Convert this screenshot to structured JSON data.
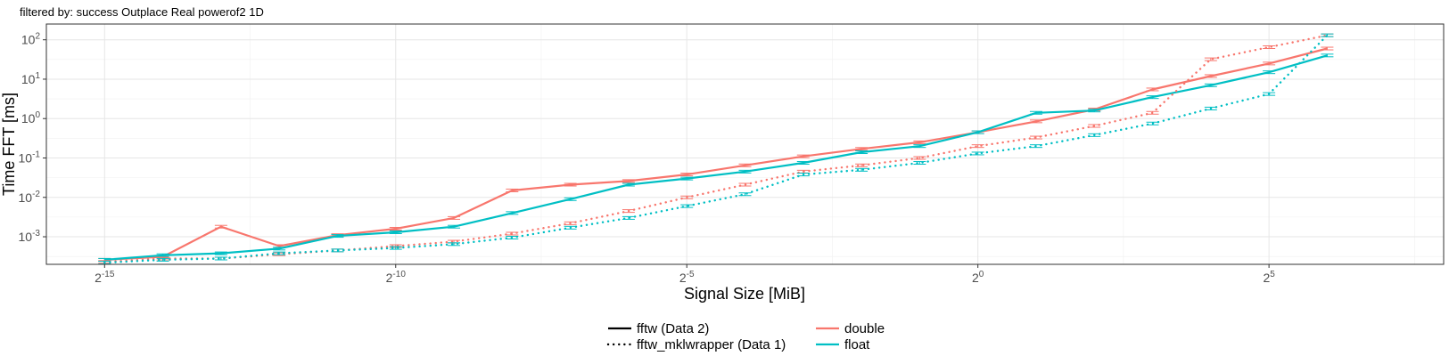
{
  "chart_data": {
    "type": "line",
    "subtitle": "filtered by: success Outplace Real powerof2 1D",
    "xlabel": "Signal Size [MiB]",
    "ylabel": "Time FFT [ms]",
    "x_scale": "log2",
    "y_scale": "log10",
    "xlim_exp": [
      -16,
      8
    ],
    "ylim_log": [
      -3.7,
      2.4
    ],
    "x_ticks": [
      {
        "base": "2",
        "exp": "-15",
        "value": -15
      },
      {
        "base": "2",
        "exp": "-10",
        "value": -10
      },
      {
        "base": "2",
        "exp": "-5",
        "value": -5
      },
      {
        "base": "2",
        "exp": "0",
        "value": 0
      },
      {
        "base": "2",
        "exp": "5",
        "value": 5
      }
    ],
    "y_ticks": [
      {
        "base": "10",
        "exp": "-3",
        "value": -3
      },
      {
        "base": "10",
        "exp": "-2",
        "value": -2
      },
      {
        "base": "10",
        "exp": "-1",
        "value": -1
      },
      {
        "base": "10",
        "exp": "0",
        "value": 0
      },
      {
        "base": "10",
        "exp": "1",
        "value": 1
      },
      {
        "base": "10",
        "exp": "2",
        "value": 2
      }
    ],
    "x_exponents": [
      -15,
      -14,
      -13,
      -12,
      -11,
      -10,
      -9,
      -8,
      -7,
      -6,
      -5,
      -4,
      -3,
      -2,
      -1,
      0,
      1,
      2,
      3,
      4,
      5,
      6
    ],
    "grid": true,
    "legend_position": "bottom",
    "colors": {
      "double": "#F8766D",
      "float": "#00BFC4"
    },
    "legend": {
      "linetype": [
        {
          "label": "fftw (Data 2)",
          "style": "solid"
        },
        {
          "label": "fftw_mklwrapper (Data 1)",
          "style": "dotted"
        }
      ],
      "color": [
        {
          "label": "double",
          "color": "#F8766D"
        },
        {
          "label": "float",
          "color": "#00BFC4"
        }
      ]
    },
    "series": [
      {
        "library": "fftw (Data 2)",
        "precision": "double",
        "style": "solid",
        "values": [
          0.00026,
          0.00031,
          0.0018,
          0.00058,
          0.0011,
          0.0016,
          0.003,
          0.015,
          0.021,
          0.026,
          0.038,
          0.065,
          0.11,
          0.17,
          0.25,
          0.45,
          0.85,
          1.7,
          5.5,
          12,
          25,
          60
        ]
      },
      {
        "library": "fftw (Data 2)",
        "precision": "float",
        "style": "solid",
        "values": [
          0.00026,
          0.00034,
          0.00038,
          0.0005,
          0.00105,
          0.0013,
          0.0018,
          0.004,
          0.009,
          0.021,
          0.03,
          0.045,
          0.075,
          0.14,
          0.2,
          0.45,
          1.4,
          1.6,
          3.5,
          7,
          15,
          40
        ]
      },
      {
        "library": "fftw_mklwrapper (Data 1)",
        "precision": "double",
        "style": "dotted",
        "values": [
          0.00023,
          0.00028,
          0.00028,
          0.00036,
          0.00045,
          0.00058,
          0.00075,
          0.0012,
          0.0022,
          0.0045,
          0.01,
          0.021,
          0.045,
          0.065,
          0.1,
          0.2,
          0.33,
          0.65,
          1.4,
          32,
          65,
          130
        ]
      },
      {
        "library": "fftw_mklwrapper (Data 1)",
        "precision": "float",
        "style": "dotted",
        "values": [
          0.00022,
          0.00026,
          0.00028,
          0.00038,
          0.00045,
          0.00052,
          0.00065,
          0.00095,
          0.0017,
          0.003,
          0.006,
          0.012,
          0.038,
          0.05,
          0.075,
          0.13,
          0.2,
          0.38,
          0.75,
          1.8,
          4.2,
          130
        ]
      }
    ]
  }
}
